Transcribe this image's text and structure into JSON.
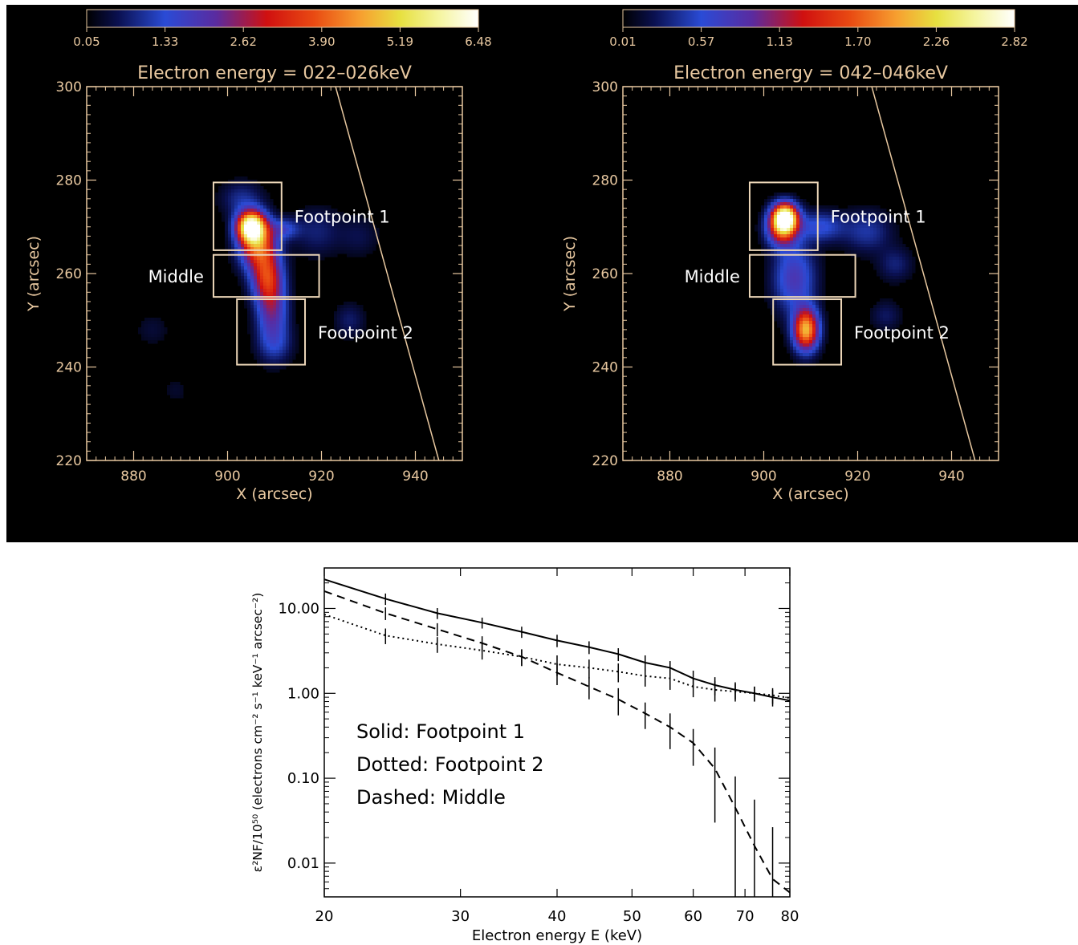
{
  "chart_data": [
    {
      "type": "heatmap",
      "title": "Electron energy = 022–026keV",
      "xlabel": "X (arcsec)",
      "ylabel": "Y (arcsec)",
      "xlim": [
        870,
        950
      ],
      "ylim": [
        220,
        300
      ],
      "x_ticks": [
        "880",
        "900",
        "920",
        "940"
      ],
      "y_ticks": [
        "300",
        "280",
        "260",
        "240",
        "220"
      ],
      "colorbar": {
        "range": [
          0.05,
          6.48
        ],
        "tick_labels": [
          "0.05",
          "1.33",
          "2.62",
          "3.90",
          "5.19",
          "6.48"
        ]
      },
      "regions": [
        {
          "label": "Footpoint 1",
          "x": [
            897,
            911.5
          ],
          "y": [
            265,
            279.5
          ]
        },
        {
          "label": "Middle",
          "x": [
            897,
            919.5
          ],
          "y": [
            255,
            264
          ]
        },
        {
          "label": "Footpoint 2",
          "x": [
            902,
            916.5
          ],
          "y": [
            240.5,
            254.5
          ]
        }
      ],
      "limb": {
        "x1": 923,
        "y1": 300,
        "x2": 945,
        "y2": 220
      },
      "sources": [
        {
          "x": 905,
          "y": 270,
          "peak": 6.48,
          "sx": 2.0,
          "sy": 2.2
        },
        {
          "x": 906.5,
          "y": 266,
          "peak": 3.6,
          "sx": 2.6,
          "sy": 3.5
        },
        {
          "x": 908.5,
          "y": 259,
          "peak": 2.9,
          "sx": 2.2,
          "sy": 3.5
        },
        {
          "x": 909.5,
          "y": 252,
          "peak": 1.8,
          "sx": 2.2,
          "sy": 4.0
        },
        {
          "x": 910,
          "y": 245,
          "peak": 0.9,
          "sx": 2.5,
          "sy": 3.0
        },
        {
          "x": 912,
          "y": 269.5,
          "peak": 1.1,
          "sx": 2.2,
          "sy": 1.5
        },
        {
          "x": 903,
          "y": 276,
          "peak": 0.7,
          "sx": 3.0,
          "sy": 2.5
        },
        {
          "x": 919,
          "y": 269,
          "peak": 0.55,
          "sx": 3.5,
          "sy": 3.5
        },
        {
          "x": 926,
          "y": 250,
          "peak": 0.5,
          "sx": 2.2,
          "sy": 2.5
        },
        {
          "x": 928,
          "y": 268,
          "peak": 0.35,
          "sx": 3.0,
          "sy": 3.0
        },
        {
          "x": 884,
          "y": 248,
          "peak": 0.25,
          "sx": 2.5,
          "sy": 2.5
        },
        {
          "x": 889,
          "y": 235,
          "peak": 0.2,
          "sx": 2.0,
          "sy": 2.0
        }
      ]
    },
    {
      "type": "heatmap",
      "title": "Electron energy = 042–046keV",
      "xlabel": "X (arcsec)",
      "ylabel": "Y (arcsec)",
      "xlim": [
        870,
        950
      ],
      "ylim": [
        220,
        300
      ],
      "x_ticks": [
        "880",
        "900",
        "920",
        "940"
      ],
      "y_ticks": [
        "300",
        "280",
        "260",
        "240",
        "220"
      ],
      "colorbar": {
        "range": [
          0.01,
          2.82
        ],
        "tick_labels": [
          "0.01",
          "0.57",
          "1.13",
          "1.70",
          "2.26",
          "2.82"
        ]
      },
      "regions": [
        {
          "label": "Footpoint 1",
          "x": [
            897,
            911.5
          ],
          "y": [
            265,
            279.5
          ]
        },
        {
          "label": "Middle",
          "x": [
            897,
            919.5
          ],
          "y": [
            255,
            264
          ]
        },
        {
          "label": "Footpoint 2",
          "x": [
            902,
            916.5
          ],
          "y": [
            240.5,
            254.5
          ]
        }
      ],
      "limb": {
        "x1": 923,
        "y1": 300,
        "x2": 945,
        "y2": 220
      },
      "sources": [
        {
          "x": 904.5,
          "y": 272,
          "peak": 2.82,
          "sx": 1.8,
          "sy": 2.0
        },
        {
          "x": 904,
          "y": 269.5,
          "peak": 1.4,
          "sx": 2.2,
          "sy": 2.5
        },
        {
          "x": 909,
          "y": 248,
          "peak": 2.0,
          "sx": 1.8,
          "sy": 3.0
        },
        {
          "x": 906.5,
          "y": 259,
          "peak": 0.7,
          "sx": 3.0,
          "sy": 5.0
        },
        {
          "x": 912,
          "y": 270,
          "peak": 0.5,
          "sx": 3.5,
          "sy": 2.2
        },
        {
          "x": 922,
          "y": 269,
          "peak": 0.35,
          "sx": 3.5,
          "sy": 3.0
        },
        {
          "x": 928,
          "y": 262,
          "peak": 0.25,
          "sx": 2.5,
          "sy": 2.5
        },
        {
          "x": 926,
          "y": 251,
          "peak": 0.2,
          "sx": 2.2,
          "sy": 2.2
        }
      ]
    },
    {
      "type": "line",
      "xlabel": "Electron energy E (keV)",
      "ylabel": "ε²NF/10⁵⁰ (electrons cm⁻² s⁻¹ keV⁻¹ arcsec⁻²)",
      "xscale": "log",
      "yscale": "log",
      "xlim": [
        20,
        80
      ],
      "ylim": [
        0.004,
        30
      ],
      "x_ticks": [
        "20",
        "30",
        "40",
        "50",
        "60",
        "70",
        "80"
      ],
      "y_ticks": [
        "10.00",
        "1.00",
        "0.10",
        "0.01"
      ],
      "legend": [
        "Solid: Footpoint 1",
        "Dotted: Footpoint 2",
        "Dashed: Middle"
      ],
      "series": [
        {
          "style": "solid",
          "x": [
            20,
            24,
            28,
            32,
            36,
            40,
            44,
            48,
            52,
            56,
            60,
            64,
            68,
            72,
            76,
            80
          ],
          "y": [
            22,
            13,
            8.8,
            6.8,
            5.3,
            4.2,
            3.5,
            2.9,
            2.3,
            2.0,
            1.5,
            1.25,
            1.1,
            1.0,
            0.9,
            0.82
          ],
          "yerr": [
            0,
            2.0,
            1.3,
            1.0,
            0.8,
            0.7,
            0.6,
            0.5,
            0.5,
            0.4,
            0.35,
            0.3,
            0.25,
            0.2,
            0.2,
            0
          ]
        },
        {
          "style": "dotted",
          "x": [
            20,
            24,
            28,
            32,
            36,
            40,
            44,
            48,
            52,
            56,
            60,
            64,
            68,
            72,
            76,
            80
          ],
          "y": [
            8.5,
            4.8,
            3.8,
            3.2,
            2.7,
            2.2,
            2.0,
            1.8,
            1.6,
            1.5,
            1.2,
            1.1,
            1.05,
            1.0,
            0.95,
            0.88
          ],
          "yerr": [
            0,
            1.0,
            0.8,
            0.7,
            0.6,
            0.6,
            0.5,
            0.45,
            0.4,
            0.4,
            0.3,
            0.3,
            0.25,
            0.2,
            0.2,
            0
          ]
        },
        {
          "style": "dashed",
          "x": [
            20,
            24,
            28,
            32,
            36,
            40,
            44,
            48,
            52,
            56,
            60,
            64,
            68,
            72,
            76,
            80
          ],
          "y": [
            16,
            8.8,
            5.7,
            3.9,
            2.7,
            1.75,
            1.2,
            0.85,
            0.58,
            0.4,
            0.26,
            0.13,
            0.045,
            0.016,
            0.0065,
            0.0045
          ],
          "yerr": [
            0,
            1.5,
            1.0,
            0.8,
            0.6,
            0.5,
            0.35,
            0.3,
            0.2,
            0.18,
            0.12,
            0.1,
            0.06,
            0.04,
            0.02,
            0
          ]
        }
      ]
    }
  ]
}
